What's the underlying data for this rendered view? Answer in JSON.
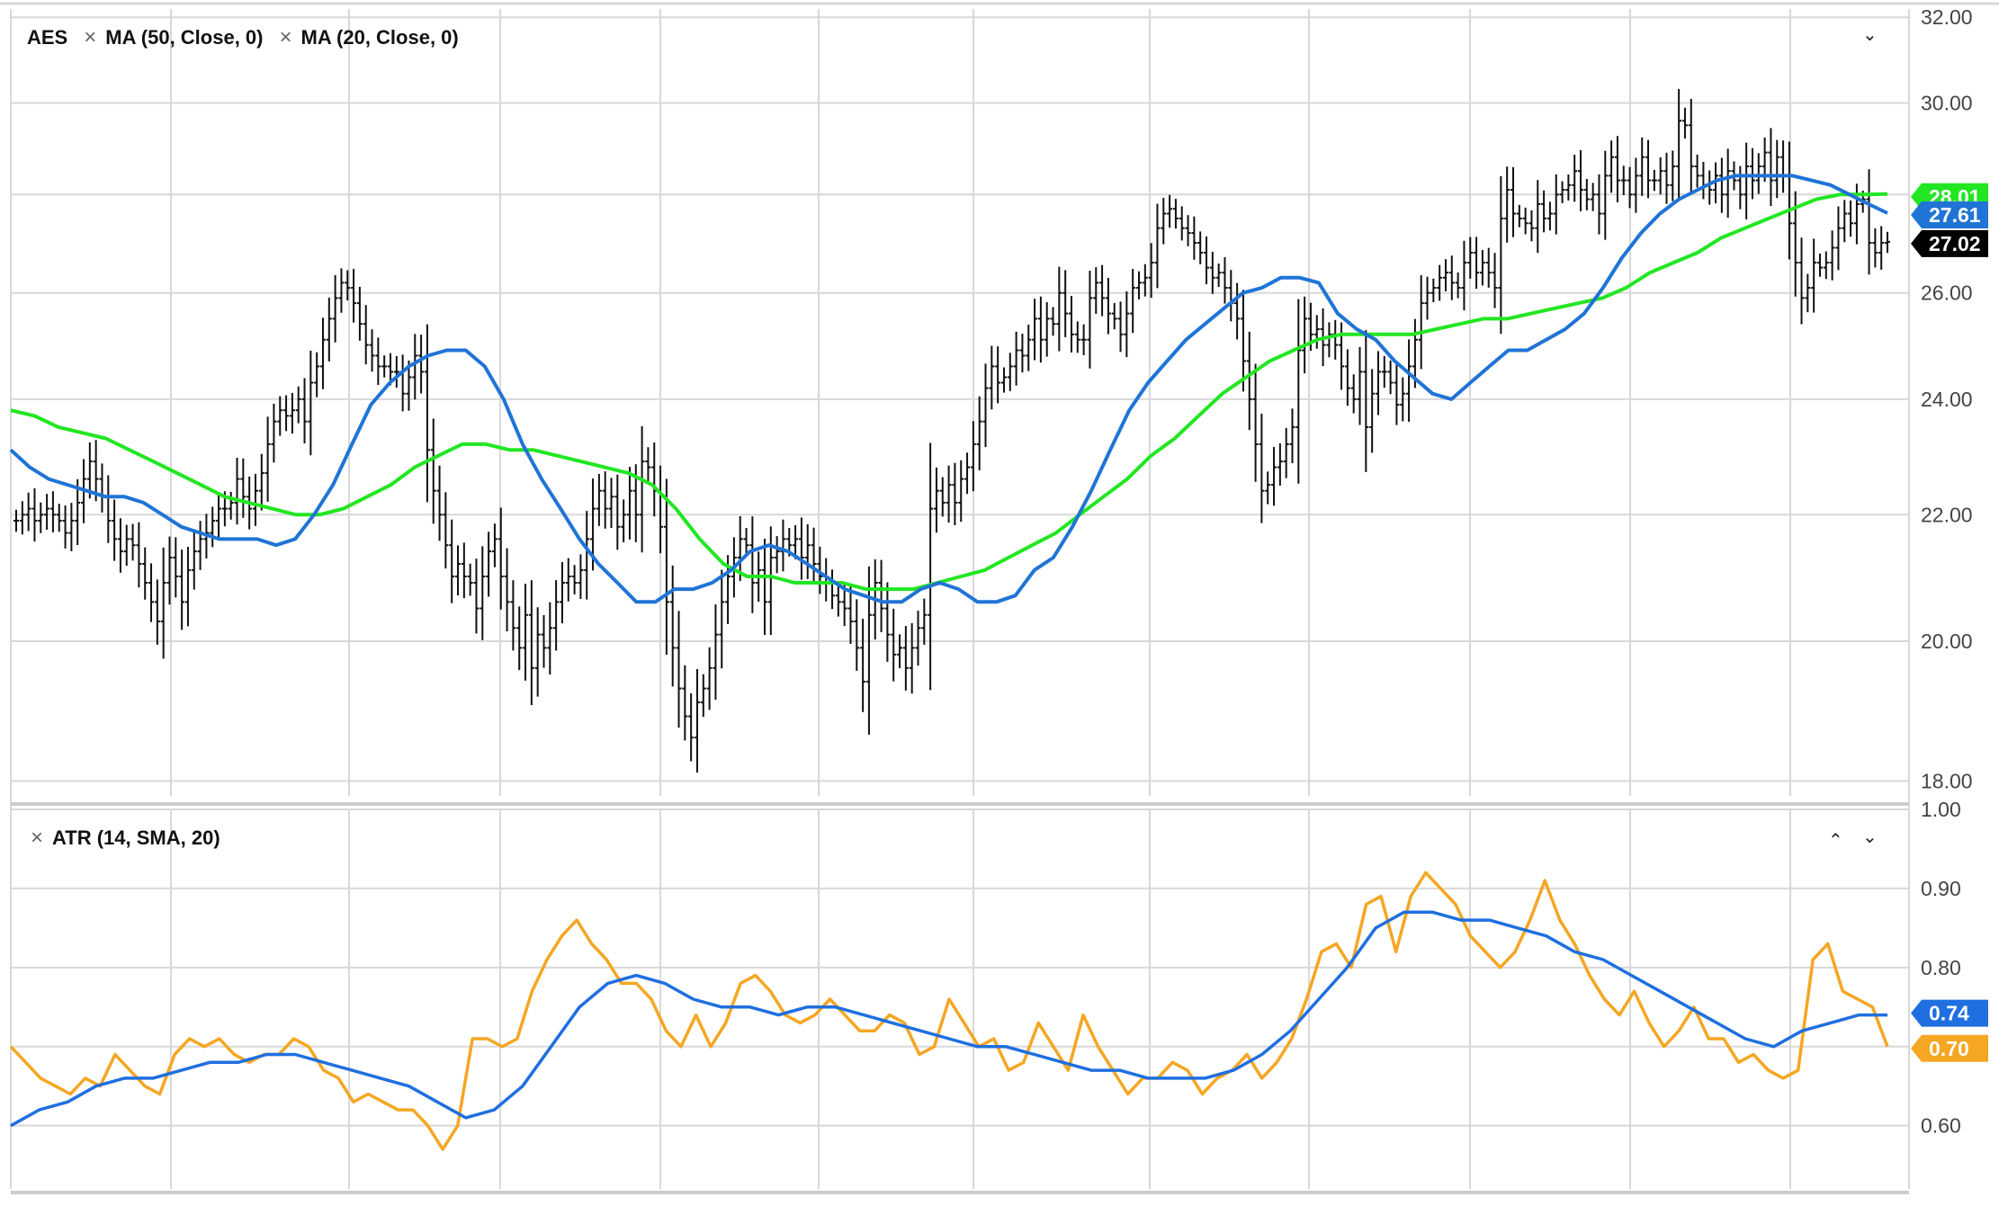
{
  "legend": {
    "symbol": "AES",
    "ma50": "MA (50, Close, 0)",
    "ma20": "MA (20, Close, 0)",
    "atr": "ATR (14, SMA, 20)"
  },
  "colors": {
    "price": "#111111",
    "ma20": "#1f74d6",
    "ma50": "#22e622",
    "atr": "#f5a623",
    "atr_sma": "#1f6fe0",
    "grid": "#d8d8d8",
    "axis_text": "#444444"
  },
  "icons": {
    "close": "×",
    "collapse": "⌃",
    "expand": "⌄"
  },
  "chart_data": [
    {
      "type": "ohlc-bar",
      "pane": "price",
      "symbol": "AES",
      "y_axis": {
        "ticks": [
          "32.00",
          "30.00",
          "28.00",
          "26.00",
          "24.00",
          "22.00",
          "20.00",
          "18.00"
        ],
        "scale": "log",
        "ylim": [
          17.8,
          32.2
        ]
      },
      "grid": true,
      "last_price_labels": [
        {
          "series": "MA (50, Close, 0)",
          "value": "28.01"
        },
        {
          "series": "MA (20, Close, 0)",
          "value": "27.61"
        },
        {
          "series": "AES",
          "value": "27.02"
        }
      ],
      "series": [
        {
          "name": "AES",
          "kind": "close",
          "values": [
            21.9,
            22.0,
            22.1,
            21.9,
            22.0,
            22.1,
            22.0,
            21.9,
            21.7,
            21.9,
            22.2,
            22.6,
            22.9,
            22.6,
            22.3,
            21.9,
            21.6,
            21.4,
            21.6,
            21.5,
            21.2,
            20.9,
            20.6,
            20.3,
            20.9,
            21.3,
            21.0,
            20.6,
            21.1,
            21.4,
            21.6,
            21.7,
            21.9,
            22.1,
            22.1,
            22.2,
            22.6,
            22.3,
            22.1,
            22.4,
            22.7,
            23.2,
            23.6,
            23.8,
            23.7,
            23.8,
            24.0,
            23.6,
            24.3,
            24.6,
            25.1,
            25.5,
            25.9,
            26.2,
            26.1,
            25.8,
            25.4,
            25.0,
            24.8,
            24.6,
            24.6,
            24.5,
            24.5,
            24.1,
            24.4,
            24.8,
            24.5,
            23.1,
            22.4,
            22.0,
            21.5,
            21.0,
            21.2,
            21.0,
            20.9,
            20.5,
            21.0,
            21.4,
            21.6,
            21.0,
            20.6,
            20.2,
            19.9,
            20.4,
            19.6,
            20.1,
            19.9,
            20.2,
            20.6,
            20.9,
            21.0,
            20.9,
            21.1,
            21.6,
            22.1,
            22.4,
            22.1,
            22.3,
            21.8,
            22.0,
            22.4,
            22.0,
            22.9,
            22.8,
            22.4,
            21.8,
            20.6,
            19.9,
            19.3,
            18.9,
            18.6,
            19.1,
            19.3,
            19.6,
            20.1,
            20.6,
            21.0,
            21.3,
            21.6,
            21.5,
            20.9,
            21.1,
            20.6,
            21.3,
            21.4,
            21.6,
            21.5,
            21.6,
            21.3,
            21.5,
            21.2,
            21.0,
            20.9,
            20.7,
            20.6,
            20.5,
            20.3,
            19.9,
            19.4,
            20.4,
            20.9,
            20.5,
            20.1,
            19.8,
            19.9,
            19.6,
            19.9,
            20.2,
            20.4,
            22.1,
            22.4,
            22.2,
            22.5,
            22.2,
            22.6,
            22.8,
            23.2,
            23.6,
            24.2,
            24.6,
            24.3,
            24.4,
            24.6,
            24.9,
            24.8,
            25.1,
            25.5,
            25.1,
            25.5,
            25.4,
            26.0,
            25.6,
            25.2,
            25.1,
            25.1,
            25.9,
            26.2,
            25.9,
            25.6,
            25.5,
            25.2,
            25.6,
            26.1,
            26.2,
            26.3,
            26.6,
            27.3,
            27.6,
            27.7,
            27.5,
            27.3,
            27.2,
            27.0,
            26.8,
            26.5,
            26.3,
            26.4,
            26.1,
            25.8,
            25.5,
            24.7,
            24.0,
            23.2,
            22.4,
            22.5,
            22.8,
            22.9,
            23.2,
            23.5,
            24.9,
            25.5,
            25.2,
            25.3,
            25.0,
            25.2,
            25.0,
            24.6,
            24.2,
            24.0,
            24.5,
            23.5,
            24.1,
            24.5,
            24.5,
            24.3,
            23.9,
            24.1,
            24.6,
            25.1,
            25.8,
            26.0,
            26.1,
            26.3,
            26.4,
            26.2,
            26.1,
            26.6,
            26.8,
            26.4,
            26.6,
            26.4,
            26.1,
            27.5,
            28.1,
            27.6,
            27.5,
            27.4,
            27.3,
            27.8,
            27.5,
            27.6,
            28.0,
            28.1,
            28.2,
            28.5,
            28.1,
            27.9,
            28.0,
            27.6,
            28.4,
            28.8,
            28.3,
            28.3,
            28.0,
            28.4,
            28.8,
            28.3,
            28.3,
            28.5,
            28.2,
            28.6,
            29.6,
            29.5,
            28.6,
            28.4,
            28.2,
            28.1,
            28.4,
            28.0,
            28.5,
            28.3,
            28.0,
            28.6,
            28.3,
            28.6,
            28.9,
            28.3,
            28.8,
            28.4,
            27.4,
            26.6,
            25.9,
            26.1,
            26.6,
            26.5,
            26.6,
            26.9,
            27.3,
            27.6,
            27.4,
            27.8,
            27.9,
            27.0,
            26.8,
            27.0,
            27.02
          ]
        },
        {
          "name": "MA (20, Close, 0)",
          "values": [
            23.1,
            22.8,
            22.6,
            22.5,
            22.4,
            22.3,
            22.3,
            22.2,
            22.0,
            21.8,
            21.7,
            21.6,
            21.6,
            21.6,
            21.5,
            21.6,
            22.0,
            22.5,
            23.2,
            23.9,
            24.3,
            24.6,
            24.8,
            24.9,
            24.9,
            24.6,
            24.0,
            23.2,
            22.6,
            22.1,
            21.6,
            21.2,
            20.9,
            20.6,
            20.6,
            20.8,
            20.8,
            20.9,
            21.1,
            21.4,
            21.5,
            21.4,
            21.2,
            21.0,
            20.8,
            20.7,
            20.6,
            20.6,
            20.8,
            20.9,
            20.8,
            20.6,
            20.6,
            20.7,
            21.1,
            21.3,
            21.8,
            22.4,
            23.1,
            23.8,
            24.3,
            24.7,
            25.1,
            25.4,
            25.7,
            26.0,
            26.1,
            26.3,
            26.3,
            26.2,
            25.6,
            25.3,
            25.1,
            24.7,
            24.4,
            24.1,
            24.0,
            24.3,
            24.6,
            24.9,
            24.9,
            25.1,
            25.3,
            25.6,
            26.1,
            26.7,
            27.2,
            27.6,
            27.9,
            28.1,
            28.3,
            28.4,
            28.4,
            28.4,
            28.4,
            28.3,
            28.2,
            28.0,
            27.8,
            27.61
          ]
        },
        {
          "name": "MA (50, Close, 0)",
          "values": [
            23.8,
            23.7,
            23.5,
            23.4,
            23.3,
            23.1,
            22.9,
            22.7,
            22.5,
            22.3,
            22.2,
            22.1,
            22.0,
            22.0,
            22.1,
            22.3,
            22.5,
            22.8,
            23.0,
            23.2,
            23.2,
            23.1,
            23.1,
            23.0,
            22.9,
            22.8,
            22.7,
            22.5,
            22.1,
            21.6,
            21.2,
            21.0,
            21.0,
            20.9,
            20.9,
            20.9,
            20.8,
            20.8,
            20.8,
            20.9,
            21.0,
            21.1,
            21.3,
            21.5,
            21.7,
            22.0,
            22.3,
            22.6,
            23.0,
            23.3,
            23.7,
            24.1,
            24.4,
            24.7,
            24.9,
            25.1,
            25.2,
            25.2,
            25.2,
            25.2,
            25.3,
            25.4,
            25.5,
            25.5,
            25.6,
            25.7,
            25.8,
            25.9,
            26.1,
            26.4,
            26.6,
            26.8,
            27.1,
            27.3,
            27.5,
            27.7,
            27.9,
            28.0,
            28.0,
            28.01
          ]
        }
      ]
    },
    {
      "type": "line",
      "pane": "indicator",
      "name": "ATR (14, SMA, 20)",
      "y_axis": {
        "ticks": [
          "1.00",
          "0.90",
          "0.80",
          "0.70",
          "0.60"
        ],
        "ylim": [
          0.52,
          1.0
        ]
      },
      "grid": true,
      "last_value_labels": [
        {
          "series": "ATR SMA",
          "value": "0.74"
        },
        {
          "series": "ATR",
          "value": "0.70"
        }
      ],
      "series": [
        {
          "name": "ATR",
          "values": [
            0.7,
            0.68,
            0.66,
            0.65,
            0.64,
            0.66,
            0.65,
            0.69,
            0.67,
            0.65,
            0.64,
            0.69,
            0.71,
            0.7,
            0.71,
            0.69,
            0.68,
            0.69,
            0.69,
            0.71,
            0.7,
            0.67,
            0.66,
            0.63,
            0.64,
            0.63,
            0.62,
            0.62,
            0.6,
            0.57,
            0.6,
            0.71,
            0.71,
            0.7,
            0.71,
            0.77,
            0.81,
            0.84,
            0.86,
            0.83,
            0.81,
            0.78,
            0.78,
            0.76,
            0.72,
            0.7,
            0.74,
            0.7,
            0.73,
            0.78,
            0.79,
            0.77,
            0.74,
            0.73,
            0.74,
            0.76,
            0.74,
            0.72,
            0.72,
            0.74,
            0.73,
            0.69,
            0.7,
            0.76,
            0.73,
            0.7,
            0.71,
            0.67,
            0.68,
            0.73,
            0.7,
            0.67,
            0.74,
            0.7,
            0.67,
            0.64,
            0.66,
            0.66,
            0.68,
            0.67,
            0.64,
            0.66,
            0.67,
            0.69,
            0.66,
            0.68,
            0.71,
            0.76,
            0.82,
            0.83,
            0.8,
            0.88,
            0.89,
            0.82,
            0.89,
            0.92,
            0.9,
            0.88,
            0.84,
            0.82,
            0.8,
            0.82,
            0.86,
            0.91,
            0.86,
            0.83,
            0.79,
            0.76,
            0.74,
            0.77,
            0.73,
            0.7,
            0.72,
            0.75,
            0.71,
            0.71,
            0.68,
            0.69,
            0.67,
            0.66,
            0.67,
            0.81,
            0.83,
            0.77,
            0.76,
            0.75,
            0.7
          ]
        },
        {
          "name": "ATR SMA",
          "values": [
            0.6,
            0.62,
            0.63,
            0.65,
            0.66,
            0.66,
            0.67,
            0.68,
            0.68,
            0.69,
            0.69,
            0.68,
            0.67,
            0.66,
            0.65,
            0.63,
            0.61,
            0.62,
            0.65,
            0.7,
            0.75,
            0.78,
            0.79,
            0.78,
            0.76,
            0.75,
            0.75,
            0.74,
            0.75,
            0.75,
            0.74,
            0.73,
            0.72,
            0.71,
            0.7,
            0.7,
            0.69,
            0.68,
            0.67,
            0.67,
            0.66,
            0.66,
            0.66,
            0.67,
            0.69,
            0.72,
            0.76,
            0.8,
            0.85,
            0.87,
            0.87,
            0.86,
            0.86,
            0.85,
            0.84,
            0.82,
            0.81,
            0.79,
            0.77,
            0.75,
            0.73,
            0.71,
            0.7,
            0.72,
            0.73,
            0.74,
            0.74
          ]
        }
      ]
    }
  ]
}
